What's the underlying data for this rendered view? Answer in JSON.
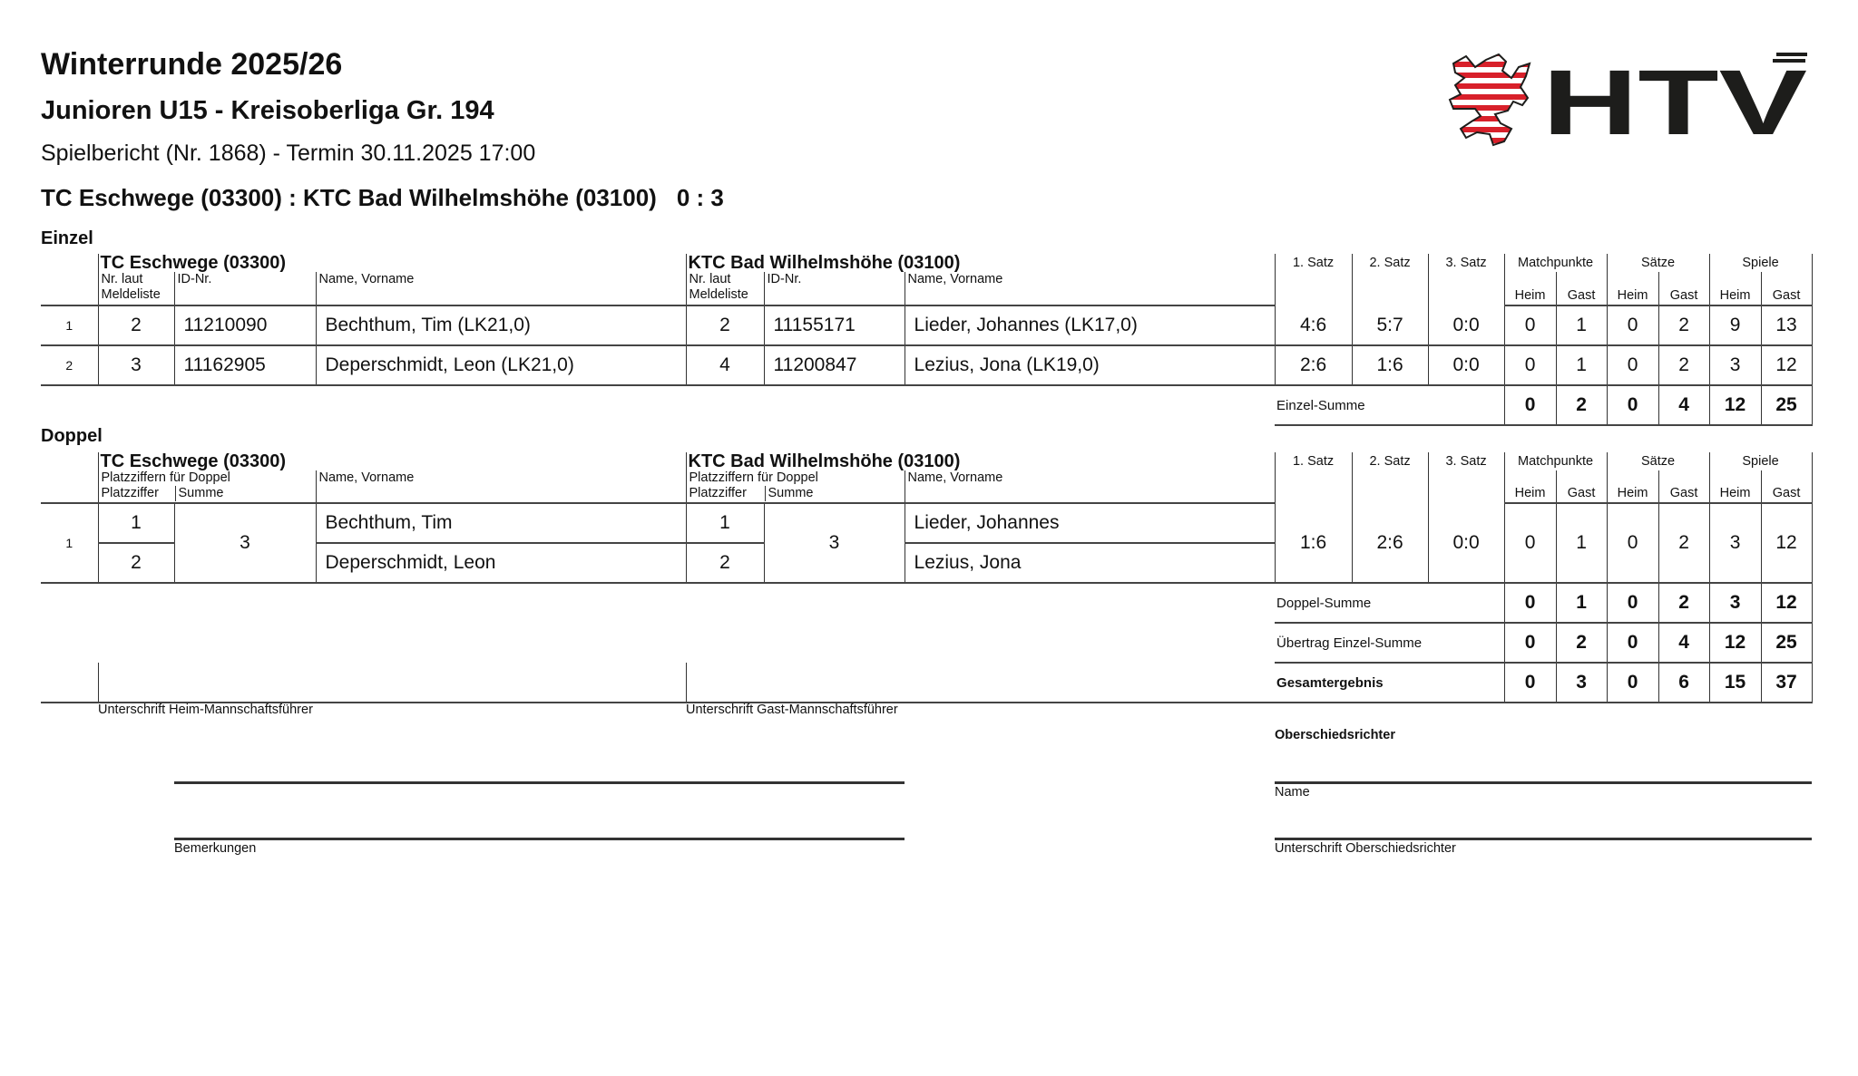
{
  "header": {
    "season": "Winterrunde 2025/26",
    "league": "Junioren U15 - Kreisoberliga Gr. 194",
    "report": "Spielbericht (Nr. 1868) - Termin 30.11.2025 17:00",
    "match": "TC Eschwege (03300) : KTC Bad Wilhelmshöhe (03100)",
    "score": "0 : 3",
    "logo_text": "HTV",
    "logo_colors": {
      "red": "#d8202a",
      "black": "#1d1d1b"
    }
  },
  "columns": {
    "satz1": "1. Satz",
    "satz2": "2. Satz",
    "satz3": "3. Satz",
    "matchpunkte": "Matchpunkte",
    "saetze": "Sätze",
    "spiele": "Spiele",
    "heim": "Heim",
    "gast": "Gast",
    "nr_laut": "Nr. laut",
    "meldeliste": "Meldeliste",
    "id_nr": "ID-Nr.",
    "name": "Name, Vorname",
    "platzziffern": "Platzziffern für Doppel",
    "platzziffer": "Platzziffer",
    "summe": "Summe"
  },
  "einzel": {
    "title": "Einzel",
    "home_team": "TC Eschwege (03300)",
    "guest_team": "KTC Bad Wilhelmshöhe (03100)",
    "rows": [
      {
        "no": "1",
        "h_nr": "2",
        "h_id": "11210090",
        "h_name": "Bechthum, Tim (LK21,0)",
        "g_nr": "2",
        "g_id": "11155171",
        "g_name": "Lieder, Johannes (LK17,0)",
        "s1": "4:6",
        "s2": "5:7",
        "s3": "0:0",
        "mp_h": "0",
        "mp_g": "1",
        "sa_h": "0",
        "sa_g": "2",
        "sp_h": "9",
        "sp_g": "13"
      },
      {
        "no": "2",
        "h_nr": "3",
        "h_id": "11162905",
        "h_name": "Deperschmidt, Leon (LK21,0)",
        "g_nr": "4",
        "g_id": "11200847",
        "g_name": "Lezius, Jona (LK19,0)",
        "s1": "2:6",
        "s2": "1:6",
        "s3": "0:0",
        "mp_h": "0",
        "mp_g": "1",
        "sa_h": "0",
        "sa_g": "2",
        "sp_h": "3",
        "sp_g": "12"
      }
    ],
    "sum": {
      "label": "Einzel-Summe",
      "mp_h": "0",
      "mp_g": "2",
      "sa_h": "0",
      "sa_g": "4",
      "sp_h": "12",
      "sp_g": "25"
    }
  },
  "doppel": {
    "title": "Doppel",
    "home_team": "TC Eschwege (03300)",
    "guest_team": "KTC Bad Wilhelmshöhe (03100)",
    "rows": [
      {
        "no": "1",
        "h_pz1": "1",
        "h_pz2": "2",
        "h_sum": "3",
        "h_name1": "Bechthum, Tim",
        "h_name2": "Deperschmidt, Leon",
        "g_pz1": "1",
        "g_pz2": "2",
        "g_sum": "3",
        "g_name1": "Lieder, Johannes",
        "g_name2": "Lezius, Jona",
        "s1": "1:6",
        "s2": "2:6",
        "s3": "0:0",
        "mp_h": "0",
        "mp_g": "1",
        "sa_h": "0",
        "sa_g": "2",
        "sp_h": "3",
        "sp_g": "12"
      }
    ],
    "sum": {
      "label": "Doppel-Summe",
      "mp_h": "0",
      "mp_g": "1",
      "sa_h": "0",
      "sa_g": "2",
      "sp_h": "3",
      "sp_g": "12"
    },
    "carry": {
      "label": "Übertrag Einzel-Summe",
      "mp_h": "0",
      "mp_g": "2",
      "sa_h": "0",
      "sa_g": "4",
      "sp_h": "12",
      "sp_g": "25"
    },
    "total": {
      "label": "Gesamtergebnis",
      "mp_h": "0",
      "mp_g": "3",
      "sa_h": "0",
      "sa_g": "6",
      "sp_h": "15",
      "sp_g": "37"
    }
  },
  "footer": {
    "sig_home": "Unterschrift Heim-Mannschaftsführer",
    "sig_guest": "Unterschrift Gast-Mannschaftsführer",
    "referee_title": "Oberschiedsrichter",
    "referee_name": "Name",
    "referee_sig": "Unterschrift Oberschiedsrichter",
    "remarks": "Bemerkungen"
  }
}
